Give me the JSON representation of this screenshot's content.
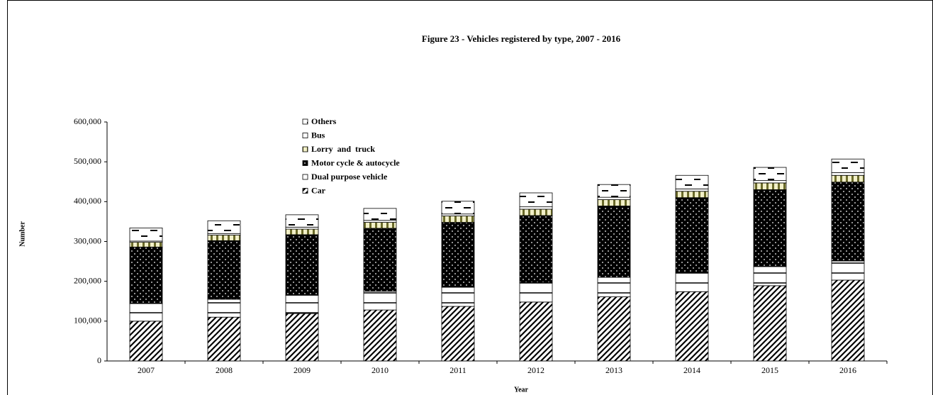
{
  "chart_data": {
    "type": "stacked_bar",
    "title": "Figure 23 - Vehicles registered by type, 2007 - 2016",
    "x_label": "Year",
    "y_label": "Number",
    "categories": [
      "2007",
      "2008",
      "2009",
      "2010",
      "2011",
      "2012",
      "2013",
      "2014",
      "2015",
      "2016"
    ],
    "series": [
      {
        "name": "Car",
        "color": "#000000",
        "values": [
          100000,
          110000,
          119000,
          128000,
          137000,
          148000,
          161000,
          174000,
          189000,
          203000
        ]
      },
      {
        "name": "Dual purpose vehicle",
        "color": "#000000",
        "values": [
          44000,
          45000,
          46000,
          47000,
          48000,
          49000,
          49000,
          48000,
          48000,
          48000
        ]
      },
      {
        "name": "Motor cycle & autocycle",
        "color": "#000000",
        "values": [
          142000,
          147000,
          152000,
          158000,
          163000,
          168000,
          179000,
          188000,
          193000,
          198000
        ]
      },
      {
        "name": "Lorry  and  truck",
        "color": "#6b6b2a",
        "values": [
          12000,
          14000,
          14000,
          15000,
          16000,
          16000,
          16000,
          16000,
          17000,
          17000
        ]
      },
      {
        "name": "Bus",
        "color": "#000000",
        "values": [
          3000,
          4000,
          5000,
          5000,
          5000,
          6000,
          6000,
          6000,
          6000,
          7000
        ]
      },
      {
        "name": "Others",
        "color": "#000000",
        "values": [
          33000,
          32000,
          31000,
          30000,
          32000,
          35000,
          32000,
          34000,
          33000,
          34000
        ]
      }
    ],
    "ylim": [
      0,
      600000
    ],
    "yticks": [
      0,
      {
        "value": 100000,
        "label": "100,000"
      },
      {
        "value": 200000,
        "label": "200,000"
      },
      {
        "value": 300000,
        "label": "300,000"
      },
      {
        "value": 400000,
        "label": "400,000"
      },
      {
        "value": 500000,
        "label": "500,000"
      },
      {
        "value": 600000,
        "label": "600,000"
      }
    ],
    "legend": "top-left"
  }
}
